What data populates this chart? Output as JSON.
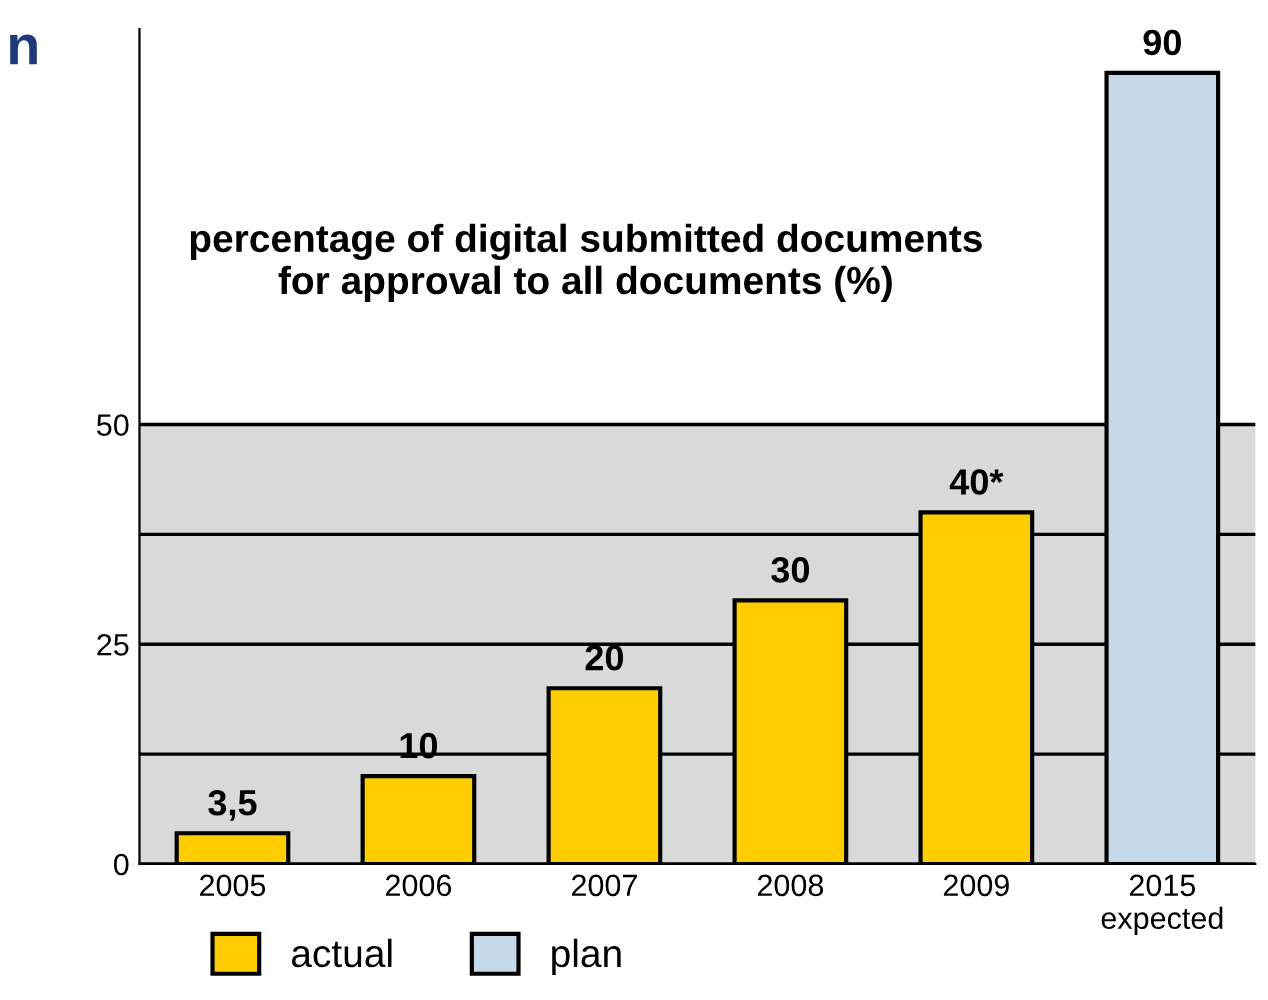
{
  "chart_data": {
    "type": "bar",
    "title": "n",
    "subtitle": "percentage of digital submitted documents\nfor approval to all documents (%)",
    "categories": [
      "2005",
      "2006",
      "2007",
      "2008",
      "2009",
      "2015\nexpected"
    ],
    "series": [
      {
        "name": "actual",
        "color": "#ffcc00",
        "values": [
          3.5,
          10,
          20,
          30,
          40,
          null
        ],
        "value_labels": [
          "3,5",
          "10",
          "20",
          "30",
          "40*",
          null
        ]
      },
      {
        "name": "plan",
        "color": "#c5d9e8",
        "values": [
          null,
          null,
          null,
          null,
          null,
          90
        ],
        "value_labels": [
          null,
          null,
          null,
          null,
          null,
          "90"
        ]
      }
    ],
    "ylim": [
      0,
      95
    ],
    "yticks": [
      0,
      {
        "value": 12.5,
        "label": null
      },
      25,
      {
        "value": 37.5,
        "label": null
      },
      50
    ],
    "bands": [
      {
        "axis": "y",
        "from": 0,
        "to": 50,
        "color": "#d9d9d9"
      }
    ],
    "grid": "y",
    "legend": "bottom left"
  }
}
